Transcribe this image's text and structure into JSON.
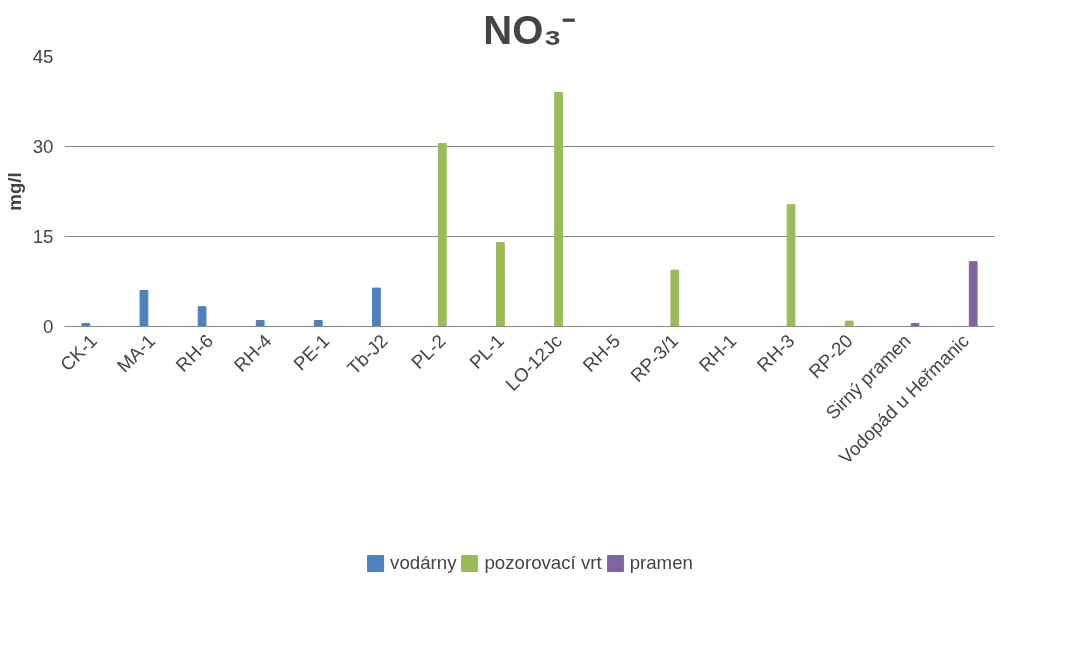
{
  "chart_data": {
    "type": "bar",
    "title": "NO₃⁻",
    "ylabel": "mg/l",
    "categories": [
      "CK-1",
      "MA-1",
      "RH-6",
      "RH-4",
      "PE-1",
      "Tb-J2",
      "PL-2",
      "PL-1",
      "LO-12Jc",
      "RH-5",
      "RP-3/1",
      "RH-1",
      "RH-3",
      "RP-20",
      "Sirný pramen",
      "Vodopád u Heřmanic"
    ],
    "series": [
      {
        "name": "vodárny",
        "color": "#4f81bd",
        "values": [
          0.5,
          6,
          3.3,
          1,
          1,
          6.4,
          null,
          null,
          null,
          null,
          null,
          null,
          null,
          null,
          null,
          null
        ]
      },
      {
        "name": "pozorovací vrt",
        "color": "#9bbb59",
        "values": [
          null,
          null,
          null,
          null,
          null,
          null,
          30.5,
          14,
          39,
          0,
          9.4,
          0,
          20.3,
          0.9,
          null,
          null
        ]
      },
      {
        "name": "pramen",
        "color": "#8064a2",
        "values": [
          null,
          null,
          null,
          null,
          null,
          null,
          null,
          null,
          null,
          null,
          null,
          null,
          null,
          null,
          0.5,
          10.8
        ]
      }
    ],
    "ylim": [
      0,
      45
    ],
    "yticks": [
      0,
      15,
      30,
      45
    ],
    "grid": "y",
    "legend": "bottom"
  }
}
